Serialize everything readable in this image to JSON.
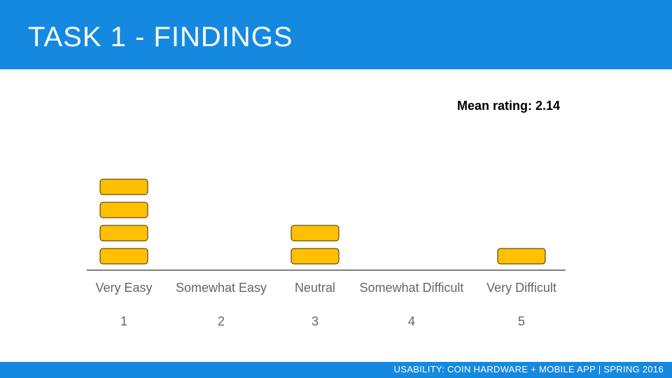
{
  "slide": {
    "title": "TASK 1 - FINDINGS",
    "mean_rating": "Mean rating: 2.14",
    "footer": "USABILITY: COIN HARDWARE + MOBILE APP | SPRING 2016"
  },
  "colors": {
    "header": "#1589e0",
    "footer": "#1589e0",
    "block_fill": "#ffc000",
    "block_stroke": "#3a2a00",
    "axis": "#333333",
    "label": "#666666"
  },
  "chart_data": {
    "type": "bar",
    "categories": [
      "Very Easy",
      "Somewhat Easy",
      "Neutral",
      "Somewhat Difficult",
      "Very Difficult"
    ],
    "ratings": [
      "1",
      "2",
      "3",
      "4",
      "5"
    ],
    "values": [
      4,
      0,
      2,
      0,
      1
    ]
  }
}
